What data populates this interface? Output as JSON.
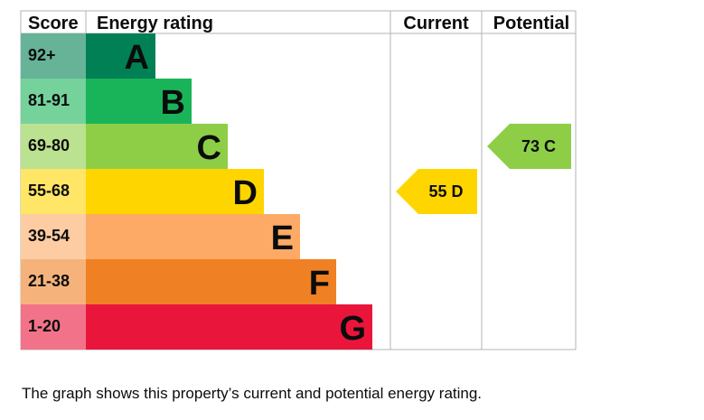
{
  "chart_data": {
    "type": "bar",
    "headers": {
      "score": "Score",
      "rating": "Energy rating",
      "current": "Current",
      "potential": "Potential"
    },
    "bands": [
      {
        "score": "92+",
        "letter": "A",
        "color": "#008054",
        "score_bg": "#66b398"
      },
      {
        "score": "81-91",
        "letter": "B",
        "color": "#19b459",
        "score_bg": "#75d29b"
      },
      {
        "score": "69-80",
        "letter": "C",
        "color": "#8dce46",
        "score_bg": "#bbe290"
      },
      {
        "score": "55-68",
        "letter": "D",
        "color": "#ffd500",
        "score_bg": "#ffe666"
      },
      {
        "score": "39-54",
        "letter": "E",
        "color": "#fcaa65",
        "score_bg": "#fdcca3"
      },
      {
        "score": "21-38",
        "letter": "F",
        "color": "#ef8023",
        "score_bg": "#f5b37b"
      },
      {
        "score": "1-20",
        "letter": "G",
        "color": "#e9153b",
        "score_bg": "#f27389"
      }
    ],
    "current": {
      "value": 55,
      "letter": "D",
      "label": "55 D",
      "color": "#ffd500"
    },
    "potential": {
      "value": 73,
      "letter": "C",
      "label": "73 C",
      "color": "#8dce46"
    }
  },
  "caption": "The graph shows this property’s current and potential energy rating."
}
